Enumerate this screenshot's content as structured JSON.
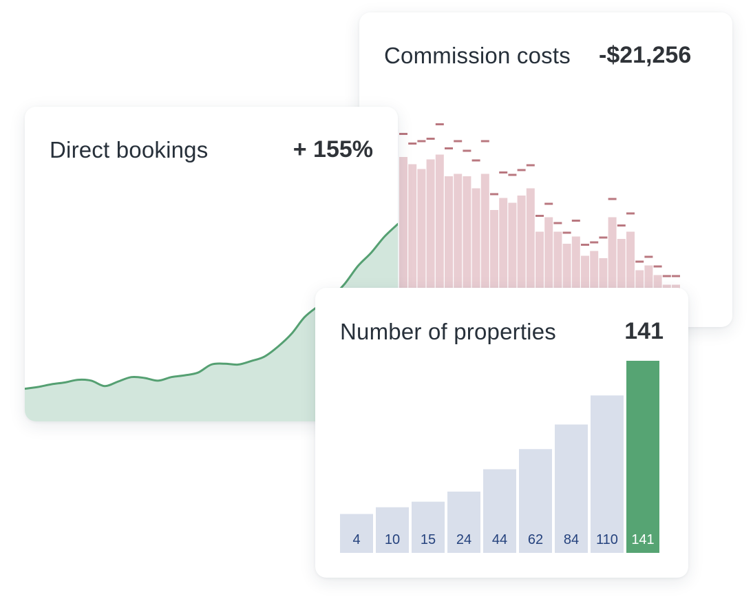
{
  "colors": {
    "green_line": "#55a072",
    "green_fill": "#d2e6dc",
    "pink_bar": "#e9cdd2",
    "pink_marker": "#b9777f",
    "slate_bar": "#d9dfeb",
    "slate_label": "#25427d",
    "highlight_bar": "#56a473",
    "highlight_label": "#ffffff"
  },
  "cards": {
    "commission": {
      "title": "Commission costs",
      "value": "-$21,256"
    },
    "direct": {
      "title": "Direct bookings",
      "value": "+ 155%"
    },
    "properties": {
      "title": "Number of properties",
      "value": "141"
    }
  },
  "chart_data": [
    {
      "type": "area",
      "title": "Direct bookings",
      "series": [
        {
          "values": [
            8,
            10,
            13,
            15,
            18,
            17,
            11,
            16,
            21,
            20,
            17,
            21,
            23,
            26,
            35,
            36,
            35,
            39,
            44,
            55,
            69,
            88,
            100,
            110,
            125,
            145,
            160,
            178,
            192
          ]
        }
      ]
    },
    {
      "type": "bar",
      "title": "Commission costs",
      "values": [
        60,
        57,
        55,
        59,
        61,
        52,
        53,
        52,
        47,
        53,
        38,
        43,
        41,
        44,
        47,
        29,
        35,
        29,
        24,
        27,
        19,
        21,
        18,
        35,
        26,
        29,
        13,
        15,
        11,
        7,
        7
      ],
      "markers": [
        70,
        66,
        67,
        68,
        74,
        64,
        67,
        63,
        59,
        67,
        45,
        54,
        53,
        55,
        57,
        36,
        41,
        33,
        29,
        34,
        24,
        25,
        27,
        43,
        32,
        37,
        17,
        19,
        15,
        11,
        11
      ]
    },
    {
      "type": "bar",
      "title": "Number of properties",
      "categories": [
        "4",
        "10",
        "15",
        "24",
        "44",
        "62",
        "84",
        "110",
        "141"
      ],
      "values": [
        4,
        10,
        15,
        24,
        44,
        62,
        84,
        110,
        141
      ],
      "highlight_index": 8
    }
  ]
}
